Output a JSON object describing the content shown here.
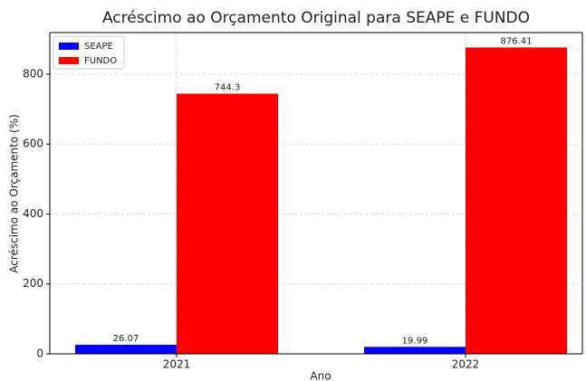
{
  "chart_data": {
    "type": "bar",
    "title": "Acréscimo ao Orçamento Original para SEAPE e FUNDO",
    "xlabel": "Ano",
    "ylabel": "Acréscimo ao Orçamento (%)",
    "categories": [
      "2021",
      "2022"
    ],
    "series": [
      {
        "name": "SEAPE",
        "color": "#0000ff",
        "values": [
          26.07,
          19.99
        ]
      },
      {
        "name": "FUNDO",
        "color": "#ff0000",
        "values": [
          744.3,
          876.41
        ]
      }
    ],
    "ylim": [
      0,
      919
    ],
    "yticks": [
      0,
      200,
      400,
      600,
      800
    ],
    "grid": true,
    "legend": "upper left"
  }
}
